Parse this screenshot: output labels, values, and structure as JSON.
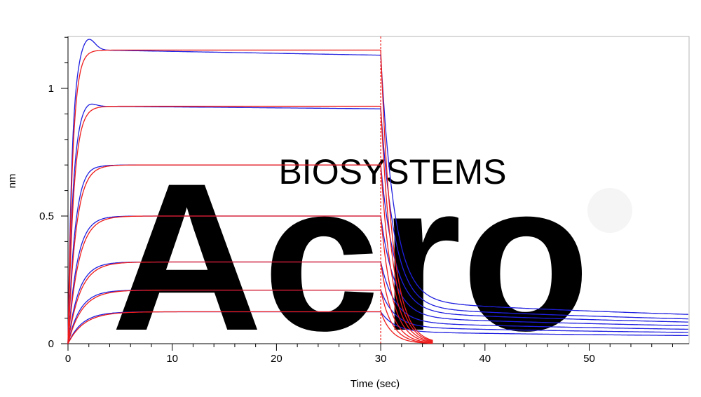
{
  "chart_data": {
    "type": "line",
    "title": "",
    "xlabel": "Time (sec)",
    "ylabel": "nm",
    "xlim": [
      0,
      59.5
    ],
    "ylim": [
      0,
      1.2
    ],
    "xticks": [
      0,
      10,
      20,
      30,
      40,
      50
    ],
    "xtick_labels": [
      "0",
      "10",
      "20",
      "30",
      "40",
      "50"
    ],
    "yticks": [
      0,
      0.5,
      1
    ],
    "ytick_labels": [
      "0",
      "0.5",
      "1"
    ],
    "association_end": 30,
    "fit_end": 35,
    "measured_end": 59.5,
    "legend": "none",
    "grid": false,
    "colors": {
      "measured": "#1f1fe0",
      "fit": "#ee1c1c",
      "marker": "#ee1c1c",
      "frame": "#b4b4b4"
    },
    "watermark": {
      "text": "BIOSYSTEMS",
      "logo": "Acro"
    },
    "series": [
      {
        "plateau": 1.15,
        "peak": 1.2,
        "end_assoc": 1.13,
        "residual": 0.065,
        "k_on": 2.2
      },
      {
        "plateau": 0.93,
        "peak": 0.95,
        "end_assoc": 0.92,
        "residual": 0.055,
        "k_on": 1.8
      },
      {
        "plateau": 0.7,
        "peak": 0.705,
        "end_assoc": 0.7,
        "residual": 0.048,
        "k_on": 1.3
      },
      {
        "plateau": 0.5,
        "peak": 0.5,
        "end_assoc": 0.5,
        "residual": 0.04,
        "k_on": 1.0
      },
      {
        "plateau": 0.32,
        "peak": 0.32,
        "end_assoc": 0.32,
        "residual": 0.032,
        "k_on": 0.85
      },
      {
        "plateau": 0.21,
        "peak": 0.21,
        "end_assoc": 0.21,
        "residual": 0.025,
        "k_on": 0.75
      },
      {
        "plateau": 0.125,
        "peak": 0.125,
        "end_assoc": 0.125,
        "residual": 0.018,
        "k_on": 0.65
      }
    ]
  }
}
